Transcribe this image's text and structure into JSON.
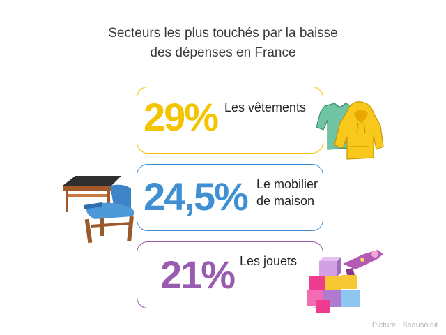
{
  "chart_data": {
    "type": "table",
    "title_line1": "Secteurs les plus touchés par la baisse",
    "title_line2": "des dépenses en France",
    "items": [
      {
        "value": 29,
        "display": "29%",
        "label_line1": "Les vêtements",
        "label_line2": "",
        "color": "#f5c400"
      },
      {
        "value": 24.5,
        "display": "24,5%",
        "label_line1": "Le mobilier",
        "label_line2": "de maison",
        "color": "#3f8fd2"
      },
      {
        "value": 21,
        "display": "21%",
        "label_line1": "Les jouets",
        "label_line2": "",
        "color": "#9a5cb0"
      }
    ]
  },
  "credit": "Picture : Beausoleil",
  "icons": [
    "clothes-icon",
    "furniture-icon",
    "toys-icon"
  ]
}
